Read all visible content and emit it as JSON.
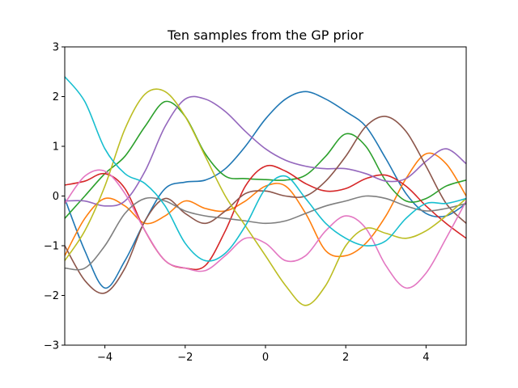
{
  "chart_data": {
    "type": "line",
    "title": "Ten samples from the GP prior",
    "xlabel": "",
    "ylabel": "",
    "xlim": [
      -5,
      5
    ],
    "ylim": [
      -3,
      3
    ],
    "grid": false,
    "x_ticks": [
      -4,
      -2,
      0,
      2,
      4
    ],
    "x_tick_labels": [
      "−4",
      "−2",
      "0",
      "2",
      "4"
    ],
    "y_ticks": [
      -3,
      -2,
      -1,
      0,
      1,
      2,
      3
    ],
    "y_tick_labels": [
      "−3",
      "−2",
      "−1",
      "0",
      "1",
      "2",
      "3"
    ],
    "x": [
      -5,
      -4.5,
      -4,
      -3.5,
      -3,
      -2.5,
      -2,
      -1.5,
      -1,
      -0.5,
      0,
      0.5,
      1,
      1.5,
      2,
      2.5,
      3,
      3.5,
      4,
      4.5,
      5
    ],
    "series": [
      {
        "color": "#1f77b4",
        "values": [
          -0.05,
          -1.1,
          -1.85,
          -1.3,
          -0.5,
          0.15,
          0.28,
          0.32,
          0.55,
          1.0,
          1.55,
          1.95,
          2.1,
          1.95,
          1.7,
          1.4,
          0.75,
          0.05,
          -0.35,
          -0.4,
          -0.15
        ]
      },
      {
        "color": "#ff7f0e",
        "values": [
          -1.2,
          -0.45,
          -0.05,
          -0.2,
          -0.55,
          -0.4,
          -0.1,
          -0.25,
          -0.3,
          -0.1,
          0.2,
          0.2,
          -0.35,
          -1.1,
          -1.2,
          -0.95,
          -0.4,
          0.35,
          0.85,
          0.65,
          0.0
        ]
      },
      {
        "color": "#2ca02c",
        "values": [
          -0.45,
          0.0,
          0.45,
          0.8,
          1.4,
          1.9,
          1.6,
          0.85,
          0.4,
          0.35,
          0.33,
          0.32,
          0.42,
          0.8,
          1.25,
          1.0,
          0.3,
          -0.1,
          -0.05,
          0.2,
          0.32
        ]
      },
      {
        "color": "#d62728",
        "values": [
          0.22,
          0.3,
          0.45,
          0.15,
          -0.7,
          -1.3,
          -1.45,
          -1.4,
          -0.7,
          0.2,
          0.6,
          0.5,
          0.25,
          0.1,
          0.15,
          0.35,
          0.42,
          0.2,
          -0.2,
          -0.55,
          -0.85
        ]
      },
      {
        "color": "#9467bd",
        "values": [
          -0.1,
          -0.1,
          -0.2,
          -0.1,
          0.5,
          1.4,
          1.95,
          1.95,
          1.7,
          1.3,
          0.95,
          0.72,
          0.6,
          0.55,
          0.55,
          0.45,
          0.3,
          0.35,
          0.7,
          0.95,
          0.65
        ]
      },
      {
        "color": "#8c564b",
        "values": [
          -1.0,
          -1.7,
          -1.95,
          -1.45,
          -0.5,
          -0.05,
          -0.35,
          -0.55,
          -0.3,
          0.05,
          0.1,
          0.0,
          0.0,
          0.3,
          0.8,
          1.4,
          1.6,
          1.3,
          0.6,
          -0.15,
          -0.55
        ]
      },
      {
        "color": "#e377c2",
        "values": [
          -0.15,
          0.4,
          0.5,
          0.05,
          -0.7,
          -1.3,
          -1.45,
          -1.5,
          -1.2,
          -0.85,
          -0.95,
          -1.3,
          -1.2,
          -0.7,
          -0.4,
          -0.65,
          -1.4,
          -1.85,
          -1.55,
          -0.85,
          -0.1
        ]
      },
      {
        "color": "#7f7f7f",
        "values": [
          -1.45,
          -1.45,
          -1.0,
          -0.35,
          -0.05,
          -0.1,
          -0.3,
          -0.4,
          -0.45,
          -0.5,
          -0.55,
          -0.5,
          -0.35,
          -0.2,
          -0.1,
          0.0,
          -0.05,
          -0.2,
          -0.3,
          -0.25,
          -0.15
        ]
      },
      {
        "color": "#bcbd22",
        "values": [
          -1.3,
          -0.7,
          0.2,
          1.35,
          2.05,
          2.1,
          1.6,
          0.8,
          0.0,
          -0.6,
          -1.2,
          -1.8,
          -2.2,
          -1.8,
          -1.0,
          -0.65,
          -0.75,
          -0.85,
          -0.7,
          -0.4,
          -0.05
        ]
      },
      {
        "color": "#17becf",
        "values": [
          2.4,
          1.9,
          0.95,
          0.45,
          0.25,
          -0.2,
          -0.95,
          -1.3,
          -1.15,
          -0.6,
          0.15,
          0.4,
          -0.05,
          -0.55,
          -0.85,
          -1.0,
          -0.9,
          -0.45,
          -0.15,
          -0.15,
          -0.05
        ]
      }
    ]
  }
}
